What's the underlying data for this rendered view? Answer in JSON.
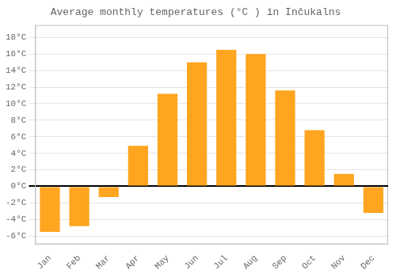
{
  "chart_data": {
    "type": "bar",
    "title": "Average monthly temperatures (°C ) in Inčukalns",
    "categories": [
      "Jan",
      "Feb",
      "Mar",
      "Apr",
      "May",
      "Jun",
      "Jul",
      "Aug",
      "Sep",
      "Oct",
      "Nov",
      "Dec"
    ],
    "values": [
      -5.5,
      -4.8,
      -1.3,
      4.9,
      11.2,
      15.0,
      16.5,
      16.0,
      11.6,
      6.8,
      1.5,
      -3.2
    ],
    "color": "#FFA520",
    "ylim": [
      -7.0,
      19.5
    ],
    "yticks": [
      {
        "value": -6,
        "label": "-6°C"
      },
      {
        "value": -4,
        "label": "-4°C"
      },
      {
        "value": -2,
        "label": "-2°C"
      },
      {
        "value": 0,
        "label": "0°C"
      },
      {
        "value": 2,
        "label": "2°C"
      },
      {
        "value": 4,
        "label": "4°C"
      },
      {
        "value": 6,
        "label": "6°C"
      },
      {
        "value": 8,
        "label": "8°C"
      },
      {
        "value": 10,
        "label": "10°C"
      },
      {
        "value": 12,
        "label": "12°C"
      },
      {
        "value": 14,
        "label": "14°C"
      },
      {
        "value": 16,
        "label": "16°C"
      },
      {
        "value": 18,
        "label": "18°C"
      }
    ],
    "grid": true
  }
}
